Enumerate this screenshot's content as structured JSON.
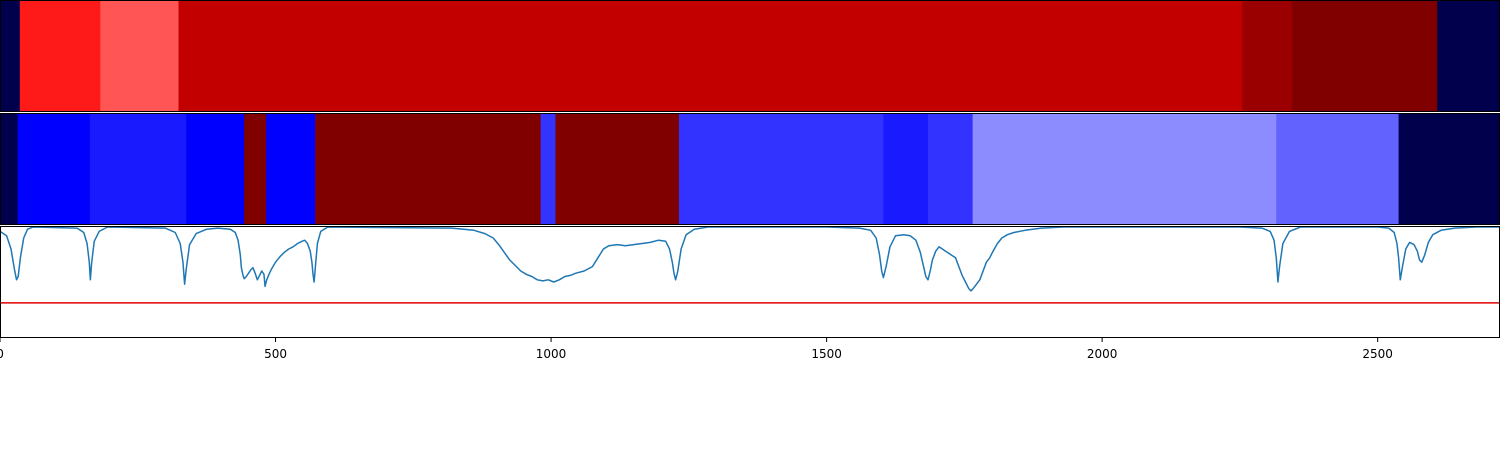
{
  "chart_data": [
    {
      "type": "heatmap",
      "name": "upper-segment-track",
      "colors": {
        "background": "#00004c"
      },
      "segments": [
        {
          "start": 0,
          "end": 36,
          "color": "#00004c"
        },
        {
          "start": 36,
          "end": 182,
          "color": "#ff1a1a"
        },
        {
          "start": 182,
          "end": 324,
          "color": "#ff5555"
        },
        {
          "start": 324,
          "end": 2254,
          "color": "#c20000"
        },
        {
          "start": 2254,
          "end": 2345,
          "color": "#9a0000"
        },
        {
          "start": 2345,
          "end": 2608,
          "color": "#800000"
        },
        {
          "start": 2608,
          "end": 2722,
          "color": "#00004c"
        }
      ],
      "xlim": [
        0,
        2722
      ]
    },
    {
      "type": "heatmap",
      "name": "lower-segment-track",
      "segments": [
        {
          "start": 0,
          "end": 32,
          "color": "#00004c"
        },
        {
          "start": 32,
          "end": 163,
          "color": "#0000ff"
        },
        {
          "start": 163,
          "end": 338,
          "color": "#1a1aff"
        },
        {
          "start": 338,
          "end": 443,
          "color": "#0000ff"
        },
        {
          "start": 443,
          "end": 483,
          "color": "#800000"
        },
        {
          "start": 483,
          "end": 572,
          "color": "#0000ff"
        },
        {
          "start": 572,
          "end": 981,
          "color": "#800000"
        },
        {
          "start": 981,
          "end": 1008,
          "color": "#3333ff"
        },
        {
          "start": 1008,
          "end": 1232,
          "color": "#800000"
        },
        {
          "start": 1232,
          "end": 1603,
          "color": "#3333ff"
        },
        {
          "start": 1603,
          "end": 1684,
          "color": "#1a1aff"
        },
        {
          "start": 1684,
          "end": 1765,
          "color": "#3333ff"
        },
        {
          "start": 1765,
          "end": 2316,
          "color": "#8c8cff"
        },
        {
          "start": 2316,
          "end": 2538,
          "color": "#6262ff"
        },
        {
          "start": 2538,
          "end": 2722,
          "color": "#00004c"
        }
      ],
      "xlim": [
        0,
        2722
      ]
    },
    {
      "type": "line",
      "name": "signal-panel",
      "xlim": [
        0,
        2722
      ],
      "ylim": [
        0,
        1
      ],
      "x_ticks": [
        0,
        500,
        1000,
        1500,
        2000,
        2500
      ],
      "threshold": 0.31,
      "colors": {
        "series": "#1f77b4",
        "threshold": "#e00000"
      },
      "series": [
        {
          "points": [
            [
              0,
              0.96
            ],
            [
              12,
              0.92
            ],
            [
              20,
              0.8
            ],
            [
              26,
              0.62
            ],
            [
              30,
              0.52
            ],
            [
              33,
              0.55
            ],
            [
              37,
              0.72
            ],
            [
              43,
              0.9
            ],
            [
              50,
              0.98
            ],
            [
              60,
              1.0
            ],
            [
              140,
              0.99
            ],
            [
              152,
              0.95
            ],
            [
              158,
              0.85
            ],
            [
              162,
              0.68
            ],
            [
              164,
              0.52
            ],
            [
              166,
              0.66
            ],
            [
              171,
              0.87
            ],
            [
              180,
              0.96
            ],
            [
              195,
              1.0
            ],
            [
              300,
              0.99
            ],
            [
              318,
              0.95
            ],
            [
              327,
              0.85
            ],
            [
              332,
              0.68
            ],
            [
              335,
              0.48
            ],
            [
              338,
              0.62
            ],
            [
              344,
              0.84
            ],
            [
              356,
              0.94
            ],
            [
              375,
              0.98
            ],
            [
              395,
              0.99
            ],
            [
              418,
              0.98
            ],
            [
              427,
              0.95
            ],
            [
              432,
              0.88
            ],
            [
              436,
              0.75
            ],
            [
              438,
              0.63
            ],
            [
              441,
              0.56
            ],
            [
              443,
              0.53
            ],
            [
              447,
              0.55
            ],
            [
              451,
              0.58
            ],
            [
              455,
              0.61
            ],
            [
              459,
              0.63
            ],
            [
              463,
              0.58
            ],
            [
              467,
              0.52
            ],
            [
              471,
              0.56
            ],
            [
              475,
              0.6
            ],
            [
              479,
              0.57
            ],
            [
              481,
              0.46
            ],
            [
              484,
              0.52
            ],
            [
              489,
              0.58
            ],
            [
              494,
              0.63
            ],
            [
              500,
              0.68
            ],
            [
              508,
              0.73
            ],
            [
              516,
              0.77
            ],
            [
              524,
              0.8
            ],
            [
              532,
              0.82
            ],
            [
              540,
              0.85
            ],
            [
              548,
              0.87
            ],
            [
              553,
              0.88
            ],
            [
              558,
              0.85
            ],
            [
              563,
              0.78
            ],
            [
              566,
              0.68
            ],
            [
              568,
              0.57
            ],
            [
              570,
              0.5
            ],
            [
              572,
              0.62
            ],
            [
              576,
              0.85
            ],
            [
              582,
              0.96
            ],
            [
              595,
              1.0
            ],
            [
              820,
              0.99
            ],
            [
              860,
              0.97
            ],
            [
              880,
              0.94
            ],
            [
              895,
              0.9
            ],
            [
              905,
              0.84
            ],
            [
              915,
              0.77
            ],
            [
              925,
              0.7
            ],
            [
              935,
              0.65
            ],
            [
              945,
              0.6
            ],
            [
              955,
              0.57
            ],
            [
              965,
              0.55
            ],
            [
              975,
              0.52
            ],
            [
              985,
              0.51
            ],
            [
              995,
              0.52
            ],
            [
              1005,
              0.5
            ],
            [
              1015,
              0.52
            ],
            [
              1025,
              0.55
            ],
            [
              1035,
              0.56
            ],
            [
              1045,
              0.58
            ],
            [
              1060,
              0.6
            ],
            [
              1075,
              0.64
            ],
            [
              1085,
              0.72
            ],
            [
              1095,
              0.8
            ],
            [
              1105,
              0.83
            ],
            [
              1120,
              0.84
            ],
            [
              1135,
              0.83
            ],
            [
              1150,
              0.84
            ],
            [
              1165,
              0.85
            ],
            [
              1180,
              0.86
            ],
            [
              1195,
              0.88
            ],
            [
              1208,
              0.87
            ],
            [
              1215,
              0.8
            ],
            [
              1220,
              0.68
            ],
            [
              1223,
              0.58
            ],
            [
              1226,
              0.52
            ],
            [
              1230,
              0.6
            ],
            [
              1236,
              0.8
            ],
            [
              1245,
              0.93
            ],
            [
              1260,
              0.98
            ],
            [
              1285,
              1.0
            ],
            [
              1500,
              1.0
            ],
            [
              1560,
              0.99
            ],
            [
              1580,
              0.97
            ],
            [
              1590,
              0.9
            ],
            [
              1596,
              0.75
            ],
            [
              1600,
              0.6
            ],
            [
              1603,
              0.54
            ],
            [
              1608,
              0.64
            ],
            [
              1615,
              0.82
            ],
            [
              1625,
              0.92
            ],
            [
              1640,
              0.93
            ],
            [
              1652,
              0.92
            ],
            [
              1662,
              0.88
            ],
            [
              1670,
              0.77
            ],
            [
              1676,
              0.64
            ],
            [
              1680,
              0.55
            ],
            [
              1684,
              0.52
            ],
            [
              1688,
              0.6
            ],
            [
              1692,
              0.7
            ],
            [
              1698,
              0.78
            ],
            [
              1704,
              0.82
            ],
            [
              1710,
              0.8
            ],
            [
              1716,
              0.78
            ],
            [
              1722,
              0.76
            ],
            [
              1728,
              0.74
            ],
            [
              1734,
              0.72
            ],
            [
              1740,
              0.64
            ],
            [
              1746,
              0.56
            ],
            [
              1752,
              0.5
            ],
            [
              1758,
              0.44
            ],
            [
              1762,
              0.42
            ],
            [
              1766,
              0.44
            ],
            [
              1772,
              0.48
            ],
            [
              1778,
              0.52
            ],
            [
              1784,
              0.6
            ],
            [
              1790,
              0.68
            ],
            [
              1796,
              0.72
            ],
            [
              1802,
              0.78
            ],
            [
              1810,
              0.85
            ],
            [
              1818,
              0.9
            ],
            [
              1828,
              0.93
            ],
            [
              1840,
              0.95
            ],
            [
              1860,
              0.97
            ],
            [
              1890,
              0.99
            ],
            [
              1930,
              1.0
            ],
            [
              2250,
              1.0
            ],
            [
              2290,
              0.99
            ],
            [
              2305,
              0.96
            ],
            [
              2312,
              0.88
            ],
            [
              2316,
              0.72
            ],
            [
              2319,
              0.5
            ],
            [
              2322,
              0.64
            ],
            [
              2328,
              0.85
            ],
            [
              2340,
              0.96
            ],
            [
              2360,
              1.0
            ],
            [
              2500,
              1.0
            ],
            [
              2520,
              0.99
            ],
            [
              2530,
              0.95
            ],
            [
              2535,
              0.85
            ],
            [
              2538,
              0.72
            ],
            [
              2541,
              0.52
            ],
            [
              2545,
              0.64
            ],
            [
              2551,
              0.8
            ],
            [
              2558,
              0.86
            ],
            [
              2566,
              0.84
            ],
            [
              2572,
              0.78
            ],
            [
              2576,
              0.7
            ],
            [
              2580,
              0.68
            ],
            [
              2585,
              0.74
            ],
            [
              2592,
              0.86
            ],
            [
              2600,
              0.93
            ],
            [
              2615,
              0.97
            ],
            [
              2640,
              0.99
            ],
            [
              2680,
              1.0
            ],
            [
              2722,
              1.0
            ]
          ]
        }
      ]
    }
  ]
}
